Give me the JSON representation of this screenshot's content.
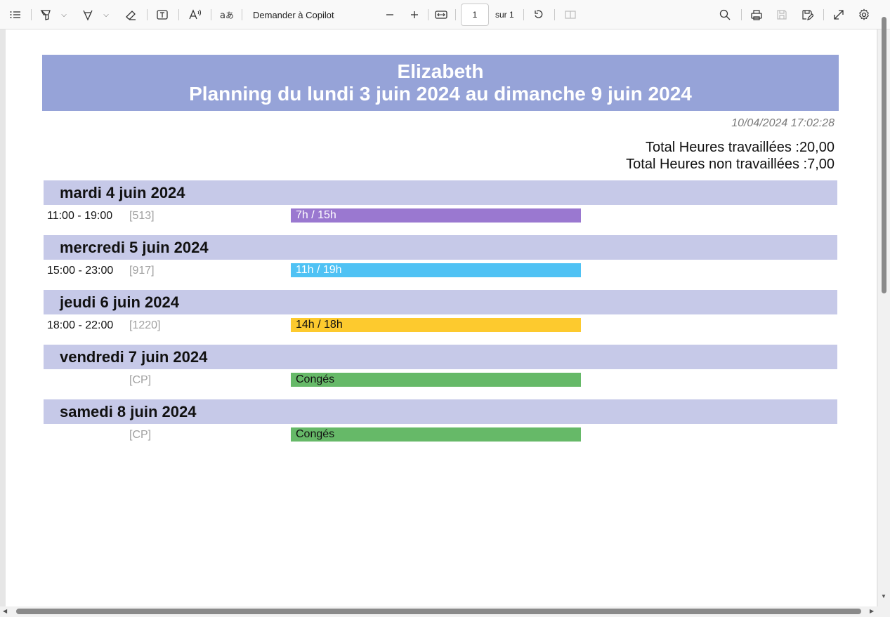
{
  "toolbar": {
    "copilot_label": "Demander à Copilot",
    "page_current": "1",
    "page_total_label": "sur 1"
  },
  "document": {
    "title_name": "Elizabeth",
    "title_period": "Planning du lundi 3 juin 2024 au dimanche 9 juin 2024",
    "timestamp": "10/04/2024 17:02:28",
    "total_worked": "Total Heures travaillées :20,00",
    "total_not_worked": "Total Heures non travaillées :7,00",
    "days": [
      {
        "label": "mardi 4 juin 2024",
        "time": "11:00 - 19:00",
        "code": "[513]",
        "bar_text": "7h / 15h",
        "bar_color": "#9a78d0",
        "text_color": "#ffffff"
      },
      {
        "label": "mercredi 5 juin 2024",
        "time": "15:00 - 23:00",
        "code": "[917]",
        "bar_text": "11h / 19h",
        "bar_color": "#4fc2f4",
        "text_color": "#ffffff"
      },
      {
        "label": "jeudi 6 juin 2024",
        "time": "18:00 - 22:00",
        "code": "[1220]",
        "bar_text": "14h / 18h",
        "bar_color": "#fdca2e",
        "text_color": "#111111"
      },
      {
        "label": "vendredi 7 juin 2024",
        "time": "",
        "code": "[CP]",
        "bar_text": "Congés",
        "bar_color": "#66b968",
        "text_color": "#111111"
      },
      {
        "label": "samedi 8 juin 2024",
        "time": "",
        "code": "[CP]",
        "bar_text": "Congés",
        "bar_color": "#66b968",
        "text_color": "#111111"
      }
    ]
  },
  "icons": [
    "contents-icon",
    "highlight-icon",
    "draw-icon",
    "erase-icon",
    "text-box-icon",
    "read-aloud-icon",
    "translate-icon",
    "zoom-out-icon",
    "zoom-in-icon",
    "fit-width-icon",
    "rotate-icon",
    "page-view-icon",
    "search-icon",
    "print-icon",
    "save-icon",
    "save-as-icon",
    "fullscreen-icon",
    "settings-icon"
  ]
}
